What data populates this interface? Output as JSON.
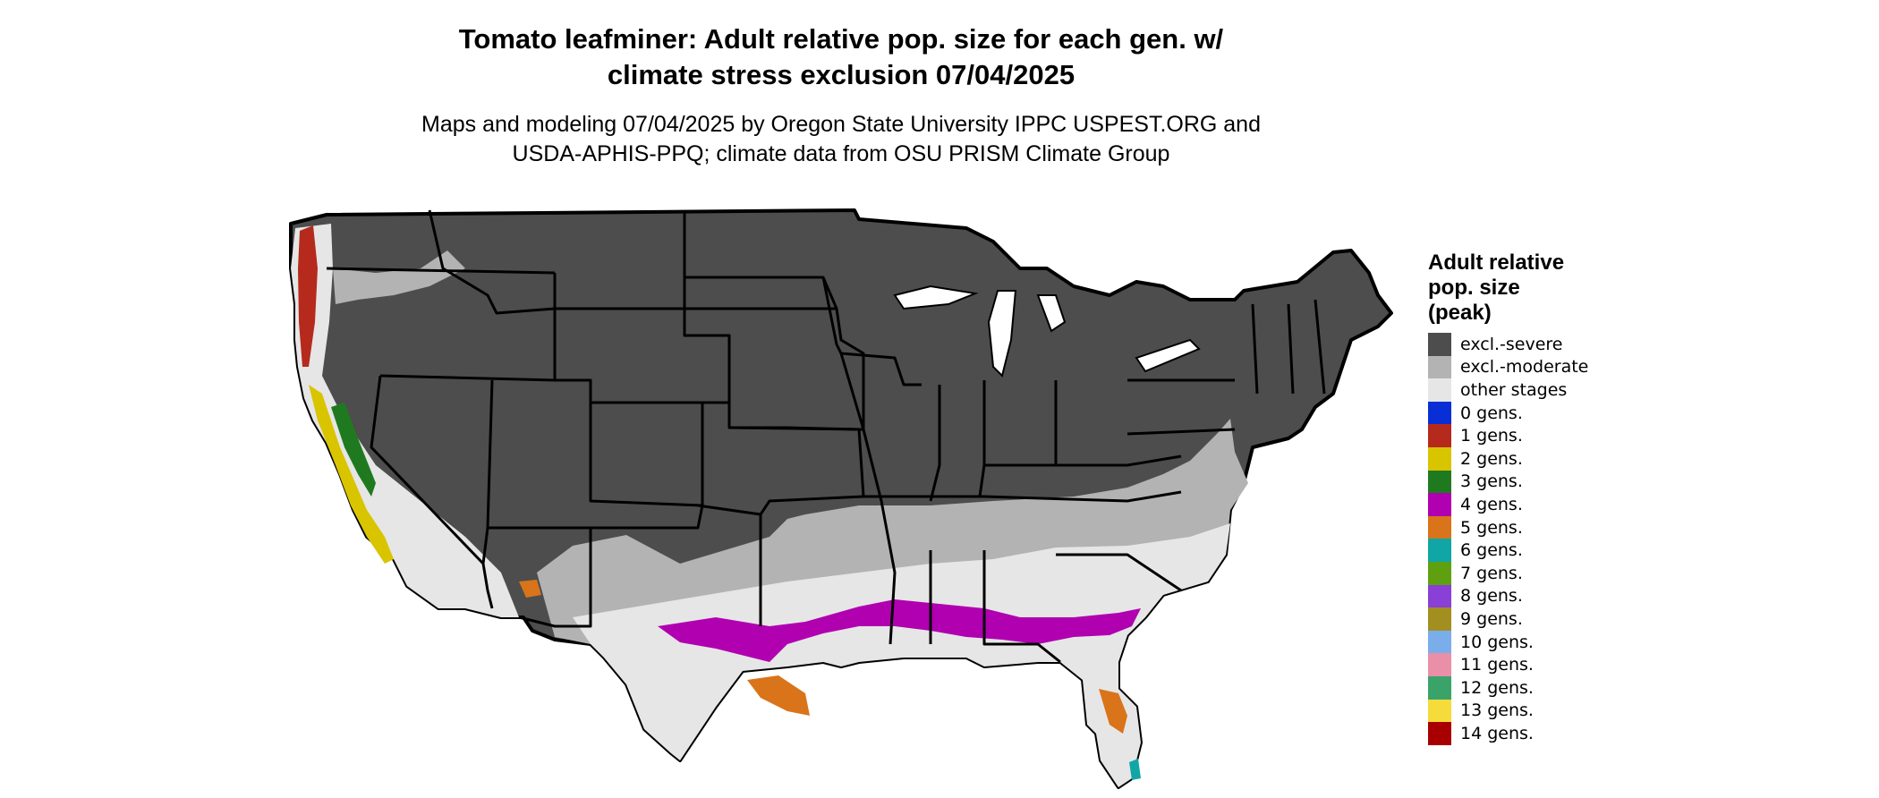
{
  "title_line1": "Tomato leafminer: Adult relative pop. size for each gen. w/",
  "title_line2": "climate stress exclusion 07/04/2025",
  "subtitle_line1": "Maps and modeling 07/04/2025 by Oregon State University IPPC USPEST.ORG and",
  "subtitle_line2": "USDA-APHIS-PPQ; climate data from OSU PRISM Climate Group",
  "legend": {
    "title_line1": "Adult relative",
    "title_line2": "pop. size",
    "title_line3": "(peak)",
    "items": [
      {
        "label": "excl.-severe",
        "color": "#4d4d4d"
      },
      {
        "label": "excl.-moderate",
        "color": "#b3b3b3"
      },
      {
        "label": "other stages",
        "color": "#e6e6e6"
      },
      {
        "label": "0 gens.",
        "color": "#0a2ed6"
      },
      {
        "label": "1 gens.",
        "color": "#b52a1c"
      },
      {
        "label": "2 gens.",
        "color": "#d9c400"
      },
      {
        "label": "3 gens.",
        "color": "#1f7a1f"
      },
      {
        "label": "4 gens.",
        "color": "#b000b0"
      },
      {
        "label": "5 gens.",
        "color": "#d9741a"
      },
      {
        "label": "6 gens.",
        "color": "#10a6a6"
      },
      {
        "label": "7 gens.",
        "color": "#5fa010"
      },
      {
        "label": "8 gens.",
        "color": "#8a3fd6"
      },
      {
        "label": "9 gens.",
        "color": "#a38f1f"
      },
      {
        "label": "10 gens.",
        "color": "#7aaeea"
      },
      {
        "label": "11 gens.",
        "color": "#ea8fa8"
      },
      {
        "label": "12 gens.",
        "color": "#3aa36a"
      },
      {
        "label": "13 gens.",
        "color": "#f5dc3a"
      },
      {
        "label": "14 gens.",
        "color": "#a80000"
      }
    ]
  }
}
